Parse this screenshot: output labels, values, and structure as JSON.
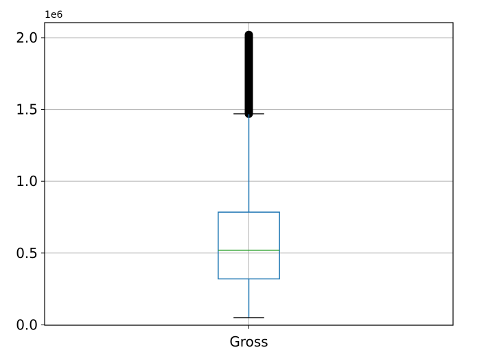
{
  "chart_data": {
    "type": "box",
    "title": "",
    "xlabel": "",
    "ylabel": "",
    "categories": [
      "Gross"
    ],
    "y_offset_label": "1e6",
    "ylim": [
      -0.003,
      2.105
    ],
    "y_ticks": [
      {
        "value": 0.0,
        "label": "0.0"
      },
      {
        "value": 0.5,
        "label": "0.5"
      },
      {
        "value": 1.0,
        "label": "1.0"
      },
      {
        "value": 1.5,
        "label": "1.5"
      },
      {
        "value": 2.0,
        "label": "2.0"
      }
    ],
    "grid": true,
    "boxes": [
      {
        "name": "Gross",
        "whisker_low": 0.05,
        "q1": 0.32,
        "median": 0.52,
        "q3": 0.785,
        "whisker_high": 1.47,
        "outliers_min": 1.47,
        "outliers_max": 2.02
      }
    ],
    "colors": {
      "box": "#1f77b4",
      "median": "#2ca02c",
      "whisker": "#1f77b4",
      "cap": "#000000",
      "grid": "#b0b0b0",
      "outlier": "#000000"
    }
  }
}
